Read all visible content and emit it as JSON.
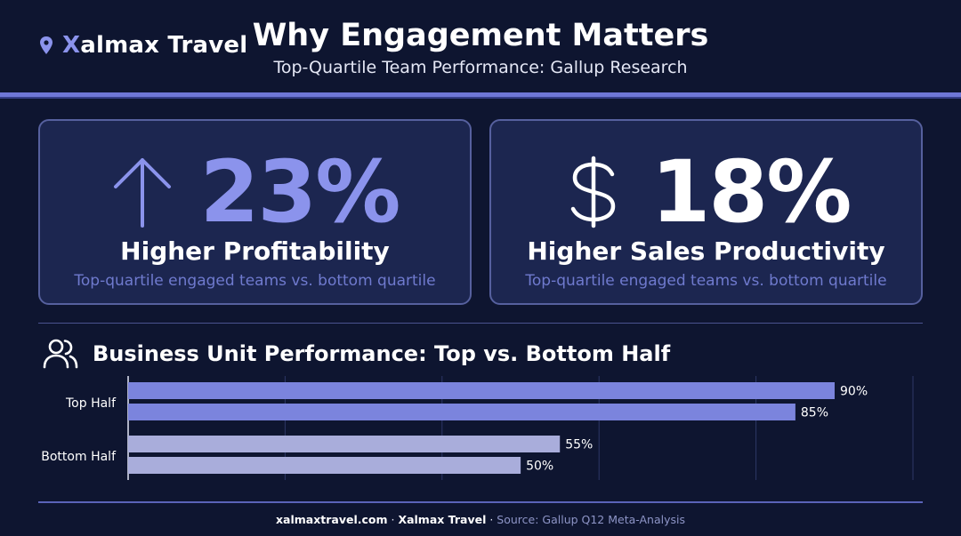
{
  "brand": {
    "initial": "X",
    "rest": "almax Travel"
  },
  "header": {
    "title": "Why Engagement Matters",
    "subtitle": "Top-Quartile Team Performance: Gallup Research"
  },
  "cards": [
    {
      "value": "23%",
      "label": "Higher Profitability",
      "desc": "Top-quartile engaged teams vs. bottom quartile",
      "icon": "arrow-up-icon",
      "color": "#8b93ec"
    },
    {
      "value": "18%",
      "label": "Higher Sales Productivity",
      "desc": "Top-quartile engaged teams vs. bottom quartile",
      "icon": "dollar-icon",
      "color": "#ffffff"
    }
  ],
  "section": {
    "title": "Business Unit Performance: Top vs. Bottom Half",
    "icon": "users-icon"
  },
  "chart_data": {
    "type": "bar",
    "orientation": "horizontal",
    "categories": [
      "Top Half",
      "Bottom Half"
    ],
    "bars": [
      {
        "category": "Top Half",
        "value": 90,
        "label": "90%",
        "color": "#7b84dd"
      },
      {
        "category": "Top Half",
        "value": 85,
        "label": "85%",
        "color": "#7b84dd"
      },
      {
        "category": "Bottom Half",
        "value": 55,
        "label": "55%",
        "color": "#a9addb"
      },
      {
        "category": "Bottom Half",
        "value": 50,
        "label": "50%",
        "color": "#a9addb"
      }
    ],
    "xlim": [
      0,
      90
    ],
    "grid": true
  },
  "footer": {
    "site": "xalmaxtravel.com",
    "sep1": " · ",
    "brand": "Xalmax Travel",
    "sep2": " · ",
    "source": "Source: Gallup Q12 Meta-Analysis"
  }
}
